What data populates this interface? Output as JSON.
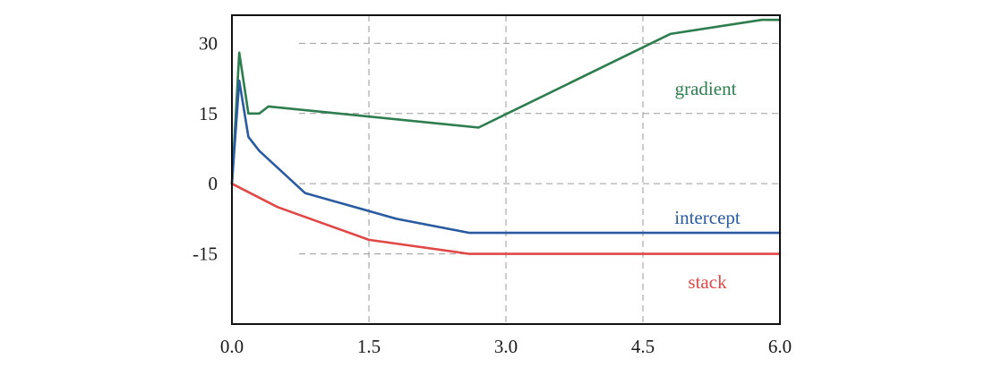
{
  "chart_data": {
    "type": "line",
    "title": "",
    "xlabel": "",
    "ylabel": "",
    "xlim": [
      0,
      6
    ],
    "ylim": [
      -30,
      36
    ],
    "x_ticks": [
      "0.0",
      "1.5",
      "3.0",
      "4.5",
      "6.0"
    ],
    "y_ticks": [
      "30",
      "15",
      "0",
      "-15"
    ],
    "grid": true,
    "legend": "inline labels at right",
    "series": [
      {
        "name": "gradient",
        "color": "#2e7d4f",
        "x": [
          0.0,
          0.08,
          0.18,
          0.3,
          0.4,
          2.7,
          4.8,
          5.8,
          6.0
        ],
        "y": [
          0,
          28,
          15,
          15,
          16.5,
          12,
          32,
          35,
          35
        ]
      },
      {
        "name": "intercept",
        "color": "#2a5aa0",
        "x": [
          0.0,
          0.08,
          0.18,
          0.3,
          0.8,
          1.8,
          2.6,
          6.0
        ],
        "y": [
          0,
          22,
          10,
          7,
          -2,
          -7.5,
          -10.5,
          -10.5
        ]
      },
      {
        "name": "stack",
        "color": "#e04848",
        "x": [
          0.0,
          0.5,
          1.5,
          2.6,
          6.0
        ],
        "y": [
          0,
          -5,
          -12,
          -15,
          -15
        ]
      }
    ]
  }
}
